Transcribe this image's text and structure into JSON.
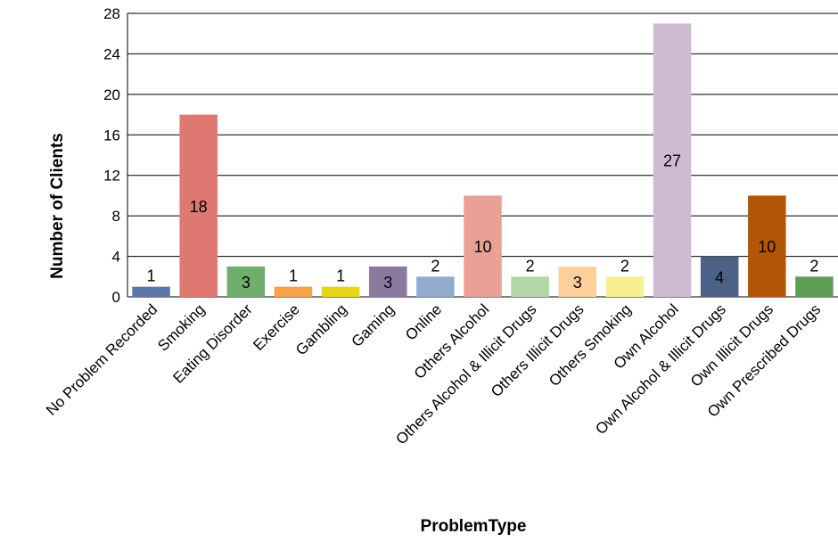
{
  "chart_data": {
    "type": "bar",
    "title": "",
    "xlabel": "ProblemType",
    "ylabel": "Number of Clients",
    "ylim": [
      0,
      28
    ],
    "yticks": [
      0,
      4,
      8,
      12,
      16,
      20,
      24,
      28
    ],
    "grid": true,
    "legend": "none",
    "categories": [
      "No Problem Recorded",
      "Smoking",
      "Eating Disorder",
      "Exercise",
      "Gambling",
      "Gaming",
      "Online",
      "Others Alcohol",
      "Others Alcohol & Illicit Drugs",
      "Others Illicit Drugs",
      "Others Smoking",
      "Own Alcohol",
      "Own Alcohol & Illicit Drugs",
      "Own Illicit Drugs",
      "Own Prescribed Drugs"
    ],
    "values": [
      1,
      18,
      3,
      1,
      1,
      3,
      2,
      10,
      2,
      3,
      2,
      27,
      4,
      10,
      2
    ],
    "labels": [
      "1",
      "18",
      "3",
      "1",
      "1",
      "3",
      "2",
      "10",
      "2",
      "3",
      "2",
      "27",
      "4",
      "10",
      "2"
    ],
    "colors": [
      "#5b78a8",
      "#e07872",
      "#6fae6c",
      "#f7a24a",
      "#e7d51a",
      "#8a7aa0",
      "#93abcf",
      "#e9a097",
      "#b4d6a6",
      "#fccf9b",
      "#f7ef91",
      "#cfbbd1",
      "#4b6185",
      "#b45608",
      "#5f9e55"
    ]
  }
}
